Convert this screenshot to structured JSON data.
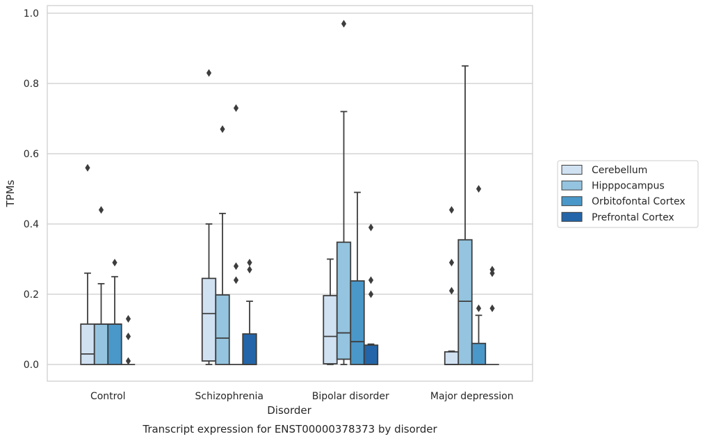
{
  "chart_data": {
    "type": "boxplot",
    "title": "Transcript expression for ENST00000378373 by disorder",
    "xlabel": "Disorder",
    "ylabel": "TPMs",
    "ylim": [
      -0.045,
      1.02
    ],
    "yticks": [
      0.0,
      0.2,
      0.4,
      0.6,
      0.8,
      1.0
    ],
    "ytick_labels": [
      "0.0",
      "0.2",
      "0.4",
      "0.6",
      "0.8",
      "1.0"
    ],
    "grid": "horizontal",
    "legend_position": "right",
    "categories": [
      "Control",
      "Schizophrenia",
      "Bipolar disorder",
      "Major depression"
    ],
    "series": [
      {
        "name": "Cerebellum",
        "color": "#d0e1f2",
        "boxes": [
          {
            "q1": 0.0,
            "median": 0.03,
            "q3": 0.115,
            "whisker_low": 0.0,
            "whisker_high": 0.26,
            "outliers": [
              0.56
            ]
          },
          {
            "q1": 0.01,
            "median": 0.145,
            "q3": 0.245,
            "whisker_low": 0.0,
            "whisker_high": 0.4,
            "outliers": [
              0.83
            ]
          },
          {
            "q1": 0.002,
            "median": 0.08,
            "q3": 0.196,
            "whisker_low": 0.0,
            "whisker_high": 0.3,
            "outliers": []
          },
          {
            "q1": 0.0,
            "median": 0.0,
            "q3": 0.036,
            "whisker_low": 0.0,
            "whisker_high": 0.038,
            "outliers": [
              0.44,
              0.29,
              0.21
            ]
          }
        ]
      },
      {
        "name": "Hipppocampus",
        "color": "#94c4df",
        "boxes": [
          {
            "q1": 0.0,
            "median": 0.115,
            "q3": 0.115,
            "whisker_low": 0.0,
            "whisker_high": 0.23,
            "outliers": [
              0.44
            ]
          },
          {
            "q1": 0.0,
            "median": 0.075,
            "q3": 0.198,
            "whisker_low": 0.0,
            "whisker_high": 0.43,
            "outliers": [
              0.67
            ]
          },
          {
            "q1": 0.015,
            "median": 0.09,
            "q3": 0.348,
            "whisker_low": 0.0,
            "whisker_high": 0.72,
            "outliers": [
              0.97
            ]
          },
          {
            "q1": 0.0,
            "median": 0.18,
            "q3": 0.355,
            "whisker_low": 0.0,
            "whisker_high": 0.85,
            "outliers": []
          }
        ]
      },
      {
        "name": "Orbitofontal Cortex",
        "color": "#4a98c9",
        "boxes": [
          {
            "q1": 0.0,
            "median": 0.115,
            "q3": 0.115,
            "whisker_low": 0.0,
            "whisker_high": 0.25,
            "outliers": [
              0.29
            ]
          },
          {
            "q1": 0.0,
            "median": 0.0,
            "q3": 0.0,
            "whisker_low": 0.0,
            "whisker_high": 0.0,
            "outliers": [
              0.73,
              0.28,
              0.24
            ]
          },
          {
            "q1": 0.0,
            "median": 0.065,
            "q3": 0.238,
            "whisker_low": 0.0,
            "whisker_high": 0.49,
            "outliers": []
          },
          {
            "q1": 0.0,
            "median": 0.0,
            "q3": 0.06,
            "whisker_low": 0.0,
            "whisker_high": 0.14,
            "outliers": [
              0.5,
              0.16
            ]
          }
        ]
      },
      {
        "name": "Prefrontal Cortex",
        "color": "#2365a8",
        "boxes": [
          {
            "q1": 0.0,
            "median": 0.0,
            "q3": 0.0,
            "whisker_low": 0.0,
            "whisker_high": 0.0,
            "outliers": [
              0.13,
              0.08,
              0.01
            ]
          },
          {
            "q1": 0.0,
            "median": 0.0,
            "q3": 0.087,
            "whisker_low": 0.0,
            "whisker_high": 0.18,
            "outliers": [
              0.29,
              0.27
            ]
          },
          {
            "q1": 0.0,
            "median": 0.0,
            "q3": 0.055,
            "whisker_low": 0.0,
            "whisker_high": 0.058,
            "outliers": [
              0.39,
              0.24,
              0.2
            ]
          },
          {
            "q1": 0.0,
            "median": 0.0,
            "q3": 0.0,
            "whisker_low": 0.0,
            "whisker_high": 0.0,
            "outliers": [
              0.27,
              0.26,
              0.16
            ]
          }
        ]
      }
    ]
  }
}
